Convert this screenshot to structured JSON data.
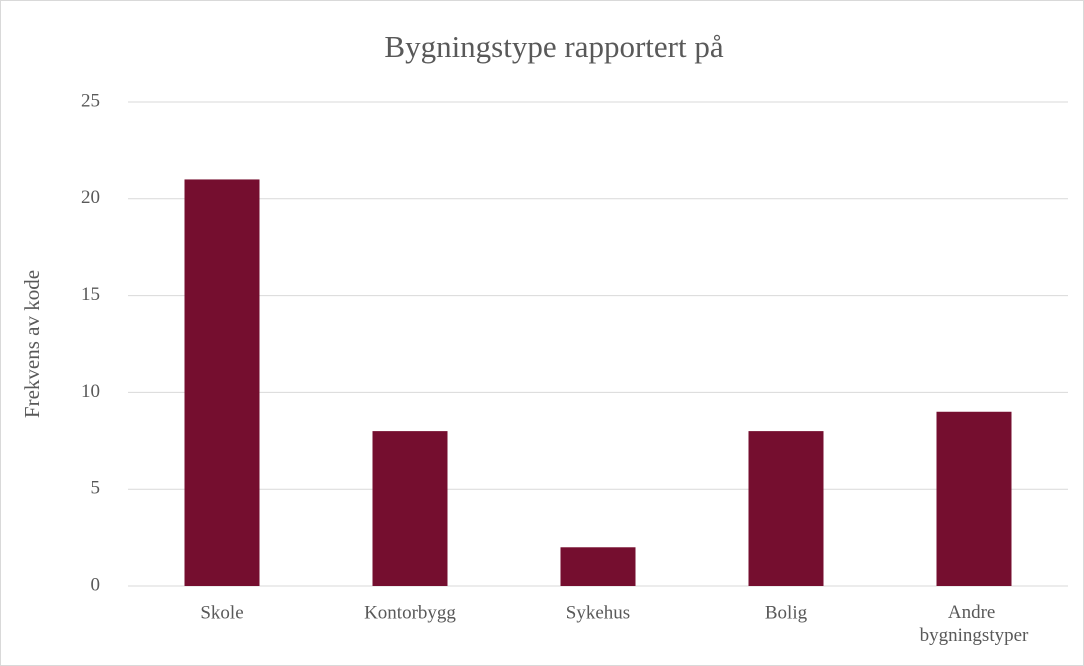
{
  "chart_data": {
    "type": "bar",
    "title": "Bygningstype rapportert på",
    "y_label": "Frekvens av kode",
    "categories": [
      "Skole",
      "Kontorbygg",
      "Sykehus",
      "Bolig",
      "Andre bygningstyper"
    ],
    "values": [
      21,
      8,
      2,
      8,
      9
    ],
    "color": "#750e2f",
    "ylim": [
      0,
      25
    ],
    "yticks": [
      0,
      5,
      10,
      15,
      20,
      25
    ],
    "grid": true
  }
}
